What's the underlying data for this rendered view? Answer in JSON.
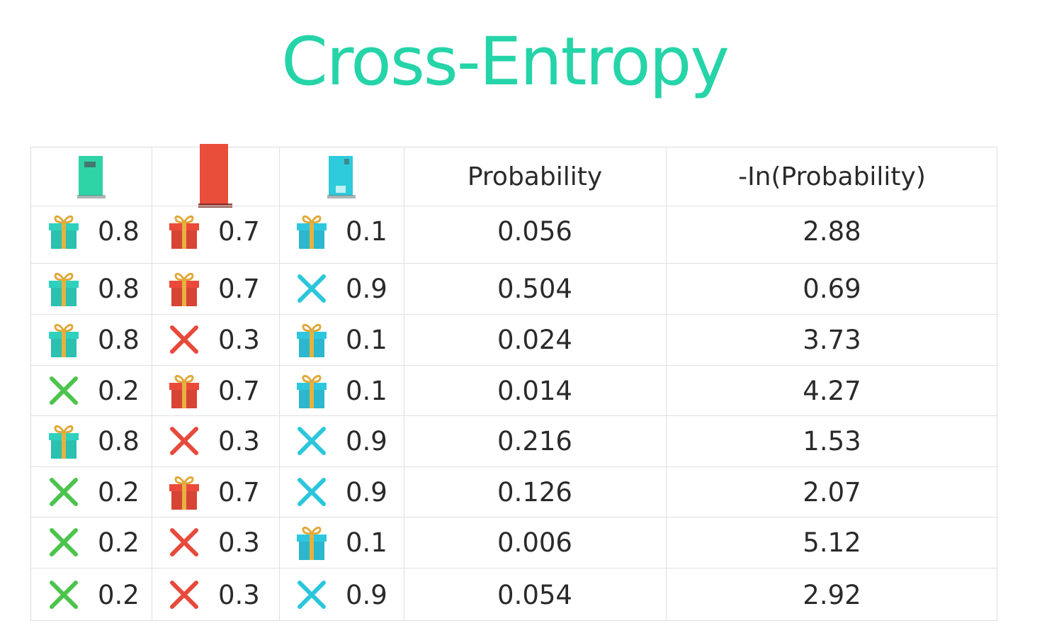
{
  "title": "Cross-Entropy",
  "colors": {
    "title": "#25d4a8",
    "door1": "#2ed3a6",
    "door2": "#e94e3b",
    "door3": "#2dcbdb",
    "gift1": "#2fd1be",
    "gift2": "#ea4a3a",
    "gift3": "#2fc7df",
    "cross_door1": "#4cc44c",
    "cross_door2": "#e64a3b",
    "cross_door3": "#2cc6dc"
  },
  "columns": {
    "door1_icon": "green-door-icon",
    "door2_icon": "red-door-icon",
    "door3_icon": "blue-door-icon",
    "probability": "Probability",
    "neg_ln": "-In(Probability)"
  },
  "rows": [
    {
      "d1": {
        "icon": "gift",
        "value": "0.8"
      },
      "d2": {
        "icon": "gift",
        "value": "0.7"
      },
      "d3": {
        "icon": "gift",
        "value": "0.1"
      },
      "prob": "0.056",
      "neg_ln": "2.88"
    },
    {
      "d1": {
        "icon": "gift",
        "value": "0.8"
      },
      "d2": {
        "icon": "gift",
        "value": "0.7"
      },
      "d3": {
        "icon": "cross",
        "value": "0.9"
      },
      "prob": "0.504",
      "neg_ln": "0.69"
    },
    {
      "d1": {
        "icon": "gift",
        "value": "0.8"
      },
      "d2": {
        "icon": "cross",
        "value": "0.3"
      },
      "d3": {
        "icon": "gift",
        "value": "0.1"
      },
      "prob": "0.024",
      "neg_ln": "3.73"
    },
    {
      "d1": {
        "icon": "cross",
        "value": "0.2"
      },
      "d2": {
        "icon": "gift",
        "value": "0.7"
      },
      "d3": {
        "icon": "gift",
        "value": "0.1"
      },
      "prob": "0.014",
      "neg_ln": "4.27"
    },
    {
      "d1": {
        "icon": "gift",
        "value": "0.8"
      },
      "d2": {
        "icon": "cross",
        "value": "0.3"
      },
      "d3": {
        "icon": "cross",
        "value": "0.9"
      },
      "prob": "0.216",
      "neg_ln": "1.53"
    },
    {
      "d1": {
        "icon": "cross",
        "value": "0.2"
      },
      "d2": {
        "icon": "gift",
        "value": "0.7"
      },
      "d3": {
        "icon": "cross",
        "value": "0.9"
      },
      "prob": "0.126",
      "neg_ln": "2.07"
    },
    {
      "d1": {
        "icon": "cross",
        "value": "0.2"
      },
      "d2": {
        "icon": "cross",
        "value": "0.3"
      },
      "d3": {
        "icon": "gift",
        "value": "0.1"
      },
      "prob": "0.006",
      "neg_ln": "5.12"
    },
    {
      "d1": {
        "icon": "cross",
        "value": "0.2"
      },
      "d2": {
        "icon": "cross",
        "value": "0.3"
      },
      "d3": {
        "icon": "cross",
        "value": "0.9"
      },
      "prob": "0.054",
      "neg_ln": "2.92"
    }
  ]
}
